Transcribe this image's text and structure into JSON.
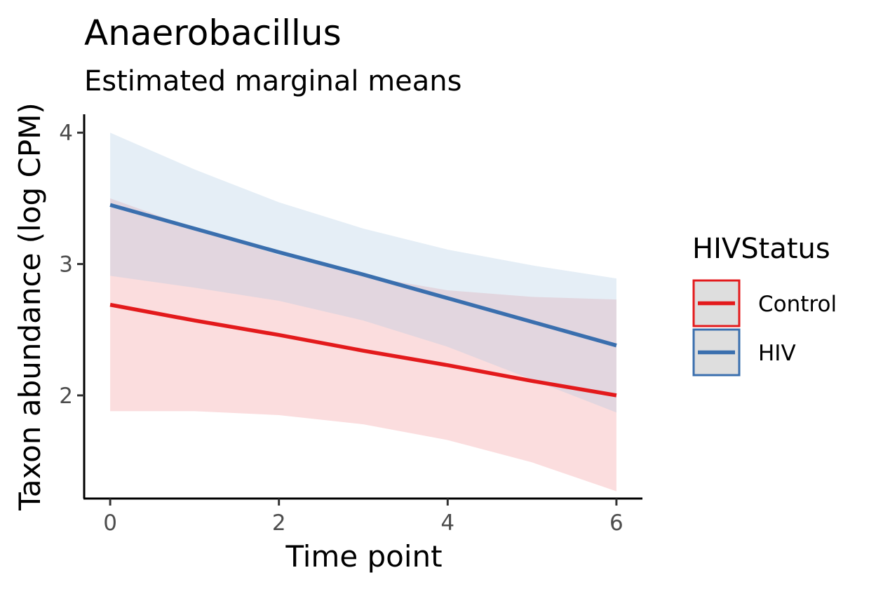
{
  "chart_data": {
    "type": "line",
    "title": "Anaerobacillus",
    "subtitle": "Estimated marginal means",
    "xlabel": "Time point",
    "ylabel": "Taxon abundance (log CPM)",
    "xlim": [
      -0.3,
      6.3
    ],
    "ylim": [
      1.22,
      4.14
    ],
    "x_ticks": [
      0,
      2,
      4,
      6
    ],
    "y_ticks": [
      2,
      3,
      4
    ],
    "grid": false,
    "legend": {
      "title": "HIVStatus",
      "position": "right",
      "entries": [
        "Control",
        "HIV"
      ]
    },
    "series": [
      {
        "name": "Control",
        "color": "#E31A1C",
        "band_color": "#F28E93",
        "x": [
          0,
          1,
          2,
          3,
          4,
          5,
          6
        ],
        "y": [
          2.69,
          2.57,
          2.46,
          2.34,
          2.23,
          2.11,
          2.0
        ],
        "lower": [
          1.88,
          1.88,
          1.85,
          1.78,
          1.66,
          1.49,
          1.27
        ],
        "upper": [
          3.5,
          3.27,
          3.07,
          2.91,
          2.8,
          2.75,
          2.73
        ]
      },
      {
        "name": "HIV",
        "color": "#3A6FAE",
        "band_color": "#A9C6E1",
        "x": [
          0,
          1,
          2,
          3,
          4,
          5,
          6
        ],
        "y": [
          3.45,
          3.27,
          3.09,
          2.92,
          2.74,
          2.56,
          2.38
        ],
        "lower": [
          2.91,
          2.82,
          2.72,
          2.57,
          2.37,
          2.12,
          1.87
        ],
        "upper": [
          4.0,
          3.72,
          3.47,
          3.27,
          3.11,
          2.99,
          2.89
        ]
      }
    ]
  }
}
